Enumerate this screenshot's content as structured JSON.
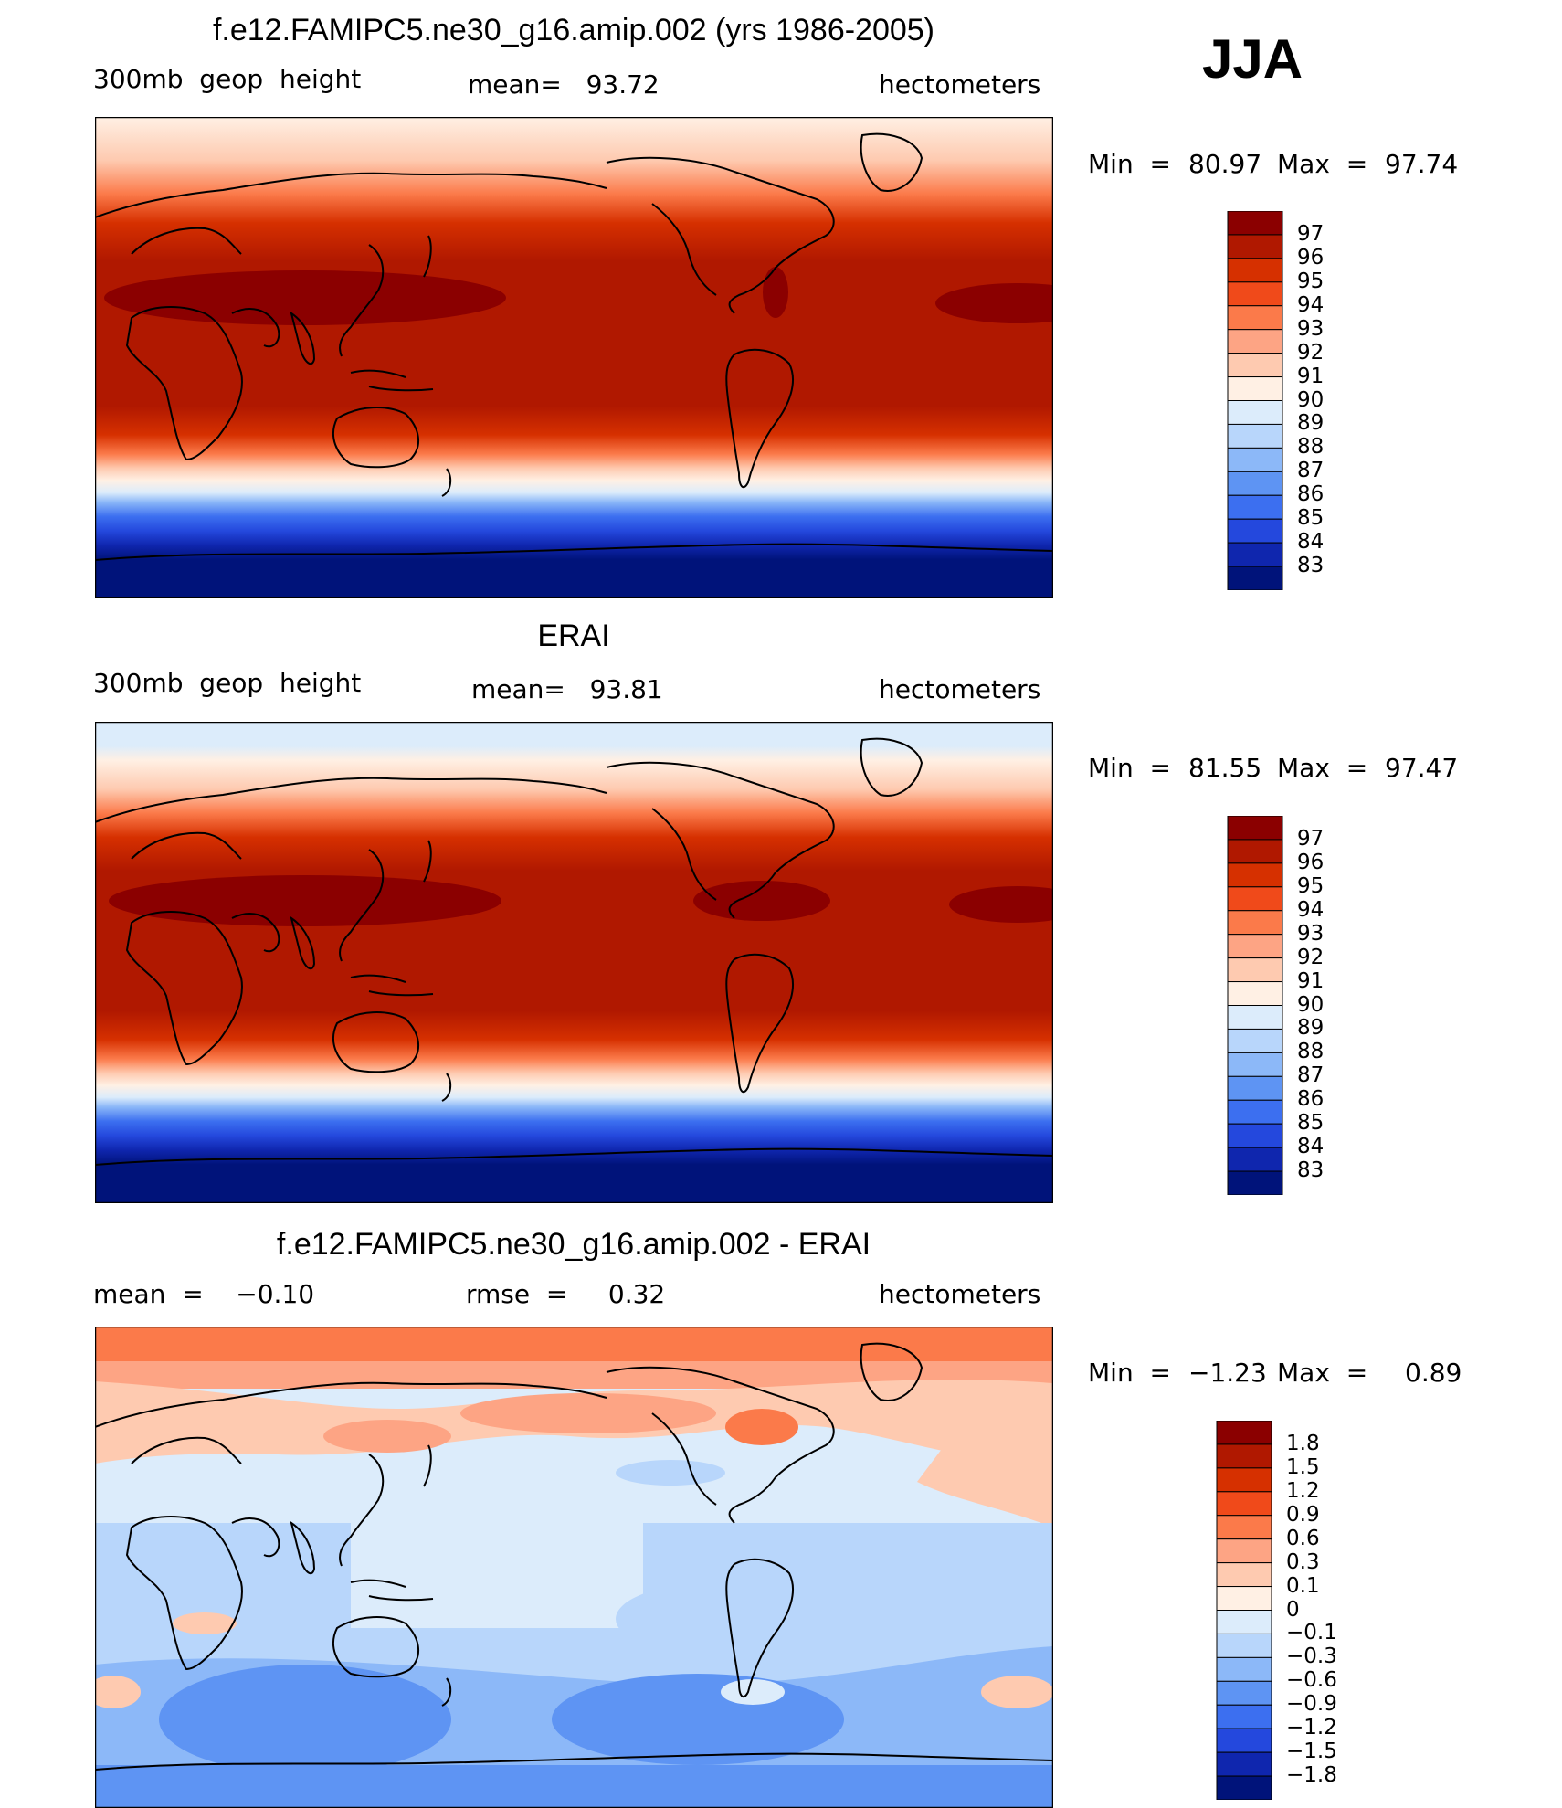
{
  "season": "JJA",
  "panels": [
    {
      "title": "f.e12.FAMIPC5.ne30_g16.amip.002 (yrs 1986-2005)",
      "left_label": "300mb  geop  height",
      "center_label": "mean=   93.72",
      "right_label": "hectometers",
      "min_label": "Min  =",
      "min_value": "80.97",
      "max_label": "Max  =",
      "max_value": "97.74"
    },
    {
      "title": "ERAI",
      "left_label": "300mb  geop  height",
      "center_label": "mean=   93.81",
      "right_label": "hectometers",
      "min_label": "Min  =",
      "min_value": "81.55",
      "max_label": "Max  =",
      "max_value": "97.47"
    },
    {
      "title": "f.e12.FAMIPC5.ne30_g16.amip.002 - ERAI",
      "left_label": "mean  =    −0.10",
      "center_label": "rmse  =     0.32",
      "right_label": "hectometers",
      "min_label": "Min  =",
      "min_value": "−1.23",
      "max_label": "Max  =",
      "max_value": "0.89"
    }
  ],
  "colorbar_abs": {
    "labels": [
      "97",
      "96",
      "95",
      "94",
      "93",
      "92",
      "91",
      "90",
      "89",
      "88",
      "87",
      "86",
      "85",
      "84",
      "83"
    ],
    "colors": [
      "#8b0000",
      "#b01800",
      "#d63000",
      "#f04a1a",
      "#fb7a4a",
      "#fda484",
      "#fecab0",
      "#fff0e4",
      "#dcecfb",
      "#b8d6fb",
      "#8cb8f8",
      "#5e94f3",
      "#3c6ff0",
      "#2448dd",
      "#0f26ae",
      "#00137a"
    ]
  },
  "colorbar_diff": {
    "labels": [
      "1.8",
      "1.5",
      "1.2",
      "0.9",
      "0.6",
      "0.3",
      "0.1",
      "0",
      "−0.1",
      "−0.3",
      "−0.6",
      "−0.9",
      "−1.2",
      "−1.5",
      "−1.8"
    ],
    "colors": [
      "#8b0000",
      "#b01800",
      "#d63000",
      "#f04a1a",
      "#fb7a4a",
      "#fda484",
      "#fecab0",
      "#fff0e4",
      "#dcecfb",
      "#b8d6fb",
      "#8cb8f8",
      "#5e94f3",
      "#3c6ff0",
      "#2448dd",
      "#0f26ae",
      "#00137a"
    ]
  }
}
